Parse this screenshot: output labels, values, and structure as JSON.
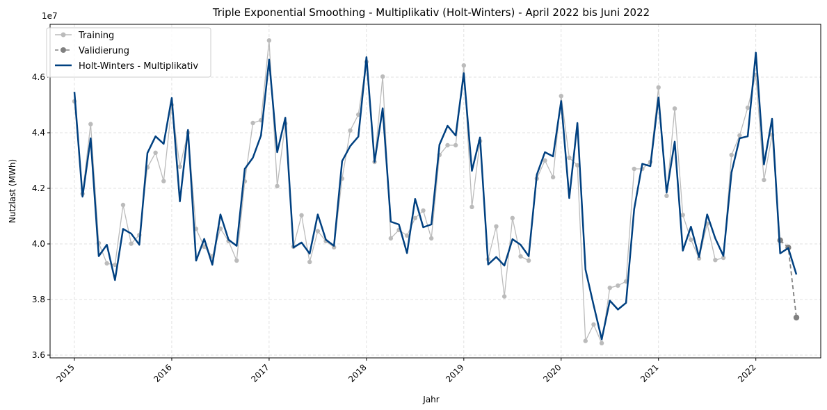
{
  "chart_data": {
    "type": "line",
    "title": "Triple Exponential Smoothing - Multiplikativ (Holt-Winters) - April 2022 bis Juni 2022",
    "xlabel": "Jahr",
    "ylabel": "Nutzlast (MWh)",
    "y_offset_label": "1e7",
    "x_ticks": [
      "2015",
      "2016",
      "2017",
      "2018",
      "2019",
      "2020",
      "2021",
      "2022"
    ],
    "y_ticks": [
      "3.6",
      "3.8",
      "4.0",
      "4.2",
      "4.4",
      "4.6"
    ],
    "x_range": [
      "2014-10",
      "2022-09"
    ],
    "ylim": [
      35900000,
      47900000
    ],
    "grid": true,
    "legend_position": "top-left",
    "series": [
      {
        "name": "Training",
        "color": "#bbbbbb",
        "style": "solid-marker",
        "x": [
          "2015-01",
          "2015-02",
          "2015-03",
          "2015-04",
          "2015-05",
          "2015-06",
          "2015-07",
          "2015-08",
          "2015-09",
          "2015-10",
          "2015-11",
          "2015-12",
          "2016-01",
          "2016-02",
          "2016-03",
          "2016-04",
          "2016-05",
          "2016-06",
          "2016-07",
          "2016-08",
          "2016-09",
          "2016-10",
          "2016-11",
          "2016-12",
          "2017-01",
          "2017-02",
          "2017-03",
          "2017-04",
          "2017-05",
          "2017-06",
          "2017-07",
          "2017-08",
          "2017-09",
          "2017-10",
          "2017-11",
          "2017-12",
          "2018-01",
          "2018-02",
          "2018-03",
          "2018-04",
          "2018-05",
          "2018-06",
          "2018-07",
          "2018-08",
          "2018-09",
          "2018-10",
          "2018-11",
          "2018-12",
          "2019-01",
          "2019-02",
          "2019-03",
          "2019-04",
          "2019-05",
          "2019-06",
          "2019-07",
          "2019-08",
          "2019-09",
          "2019-10",
          "2019-11",
          "2019-12",
          "2020-01",
          "2020-02",
          "2020-03",
          "2020-04",
          "2020-05",
          "2020-06",
          "2020-07",
          "2020-08",
          "2020-09",
          "2020-10",
          "2020-11",
          "2020-12",
          "2021-01",
          "2021-02",
          "2021-03",
          "2021-04",
          "2021-05",
          "2021-06",
          "2021-07",
          "2021-08",
          "2021-09",
          "2021-10",
          "2021-11",
          "2021-12",
          "2022-01",
          "2022-02",
          "2022-03",
          "2022-04"
        ],
        "values": [
          45130000,
          41800000,
          44310000,
          40030000,
          39300000,
          39250000,
          41400000,
          40010000,
          40320000,
          42750000,
          43280000,
          42260000,
          45000000,
          42780000,
          44000000,
          40540000,
          39900000,
          39550000,
          40550000,
          40100000,
          39400000,
          42250000,
          44350000,
          44450000,
          47320000,
          42080000,
          44330000,
          39900000,
          41030000,
          39350000,
          40460000,
          40100000,
          39880000,
          42350000,
          44080000,
          44650000,
          46550000,
          42950000,
          46020000,
          40200000,
          40500000,
          40300000,
          40930000,
          41200000,
          40200000,
          43200000,
          43550000,
          43550000,
          46420000,
          41330000,
          43700000,
          39450000,
          40630000,
          38110000,
          40930000,
          39550000,
          39400000,
          42350000,
          43000000,
          42400000,
          45320000,
          43100000,
          42830000,
          36510000,
          37100000,
          36430000,
          38420000,
          38500000,
          38650000,
          42700000,
          42700000,
          42950000,
          45630000,
          41730000,
          44870000,
          41040000,
          40150000,
          39480000,
          40730000,
          39420000,
          39500000,
          43200000,
          43900000,
          44900000,
          46080000,
          42300000,
          43920000,
          40100000
        ]
      },
      {
        "name": "Validierung",
        "color": "#808080",
        "style": "dashed-marker",
        "x": [
          "2022-04",
          "2022-05",
          "2022-06"
        ],
        "values": [
          40130000,
          39870000,
          37350000
        ]
      },
      {
        "name": "Holt-Winters - Multiplikativ",
        "color": "#004080",
        "style": "solid",
        "x": [
          "2015-01",
          "2015-02",
          "2015-03",
          "2015-04",
          "2015-05",
          "2015-06",
          "2015-07",
          "2015-08",
          "2015-09",
          "2015-10",
          "2015-11",
          "2015-12",
          "2016-01",
          "2016-02",
          "2016-03",
          "2016-04",
          "2016-05",
          "2016-06",
          "2016-07",
          "2016-08",
          "2016-09",
          "2016-10",
          "2016-11",
          "2016-12",
          "2017-01",
          "2017-02",
          "2017-03",
          "2017-04",
          "2017-05",
          "2017-06",
          "2017-07",
          "2017-08",
          "2017-09",
          "2017-10",
          "2017-11",
          "2017-12",
          "2018-01",
          "2018-02",
          "2018-03",
          "2018-04",
          "2018-05",
          "2018-06",
          "2018-07",
          "2018-08",
          "2018-09",
          "2018-10",
          "2018-11",
          "2018-12",
          "2019-01",
          "2019-02",
          "2019-03",
          "2019-04",
          "2019-05",
          "2019-06",
          "2019-07",
          "2019-08",
          "2019-09",
          "2019-10",
          "2019-11",
          "2019-12",
          "2020-01",
          "2020-02",
          "2020-03",
          "2020-04",
          "2020-05",
          "2020-06",
          "2020-07",
          "2020-08",
          "2020-09",
          "2020-10",
          "2020-11",
          "2020-12",
          "2021-01",
          "2021-02",
          "2021-03",
          "2021-04",
          "2021-05",
          "2021-06",
          "2021-07",
          "2021-08",
          "2021-09",
          "2021-10",
          "2021-11",
          "2021-12",
          "2022-01",
          "2022-02",
          "2022-03",
          "2022-04",
          "2022-05",
          "2022-06"
        ],
        "values": [
          45470000,
          41700000,
          43800000,
          39560000,
          39970000,
          38700000,
          40540000,
          40370000,
          39970000,
          43270000,
          43870000,
          43600000,
          45250000,
          41530000,
          44100000,
          39400000,
          40180000,
          39250000,
          41060000,
          40150000,
          39930000,
          42700000,
          43100000,
          43900000,
          46630000,
          43300000,
          44540000,
          39870000,
          40050000,
          39650000,
          41060000,
          40150000,
          39930000,
          42980000,
          43520000,
          43860000,
          46720000,
          42950000,
          44880000,
          40800000,
          40700000,
          39670000,
          41620000,
          40600000,
          40700000,
          43570000,
          44250000,
          43900000,
          46140000,
          42630000,
          43830000,
          39260000,
          39530000,
          39220000,
          40170000,
          39970000,
          39560000,
          42490000,
          43300000,
          43150000,
          45140000,
          41650000,
          44350000,
          39080000,
          37800000,
          36570000,
          37960000,
          37640000,
          37880000,
          41250000,
          42880000,
          42800000,
          45270000,
          41850000,
          43680000,
          39760000,
          40620000,
          39530000,
          41060000,
          40200000,
          39570000,
          42570000,
          43800000,
          43870000,
          46880000,
          42860000,
          44500000,
          39660000,
          39850000,
          38900000
        ]
      }
    ]
  }
}
